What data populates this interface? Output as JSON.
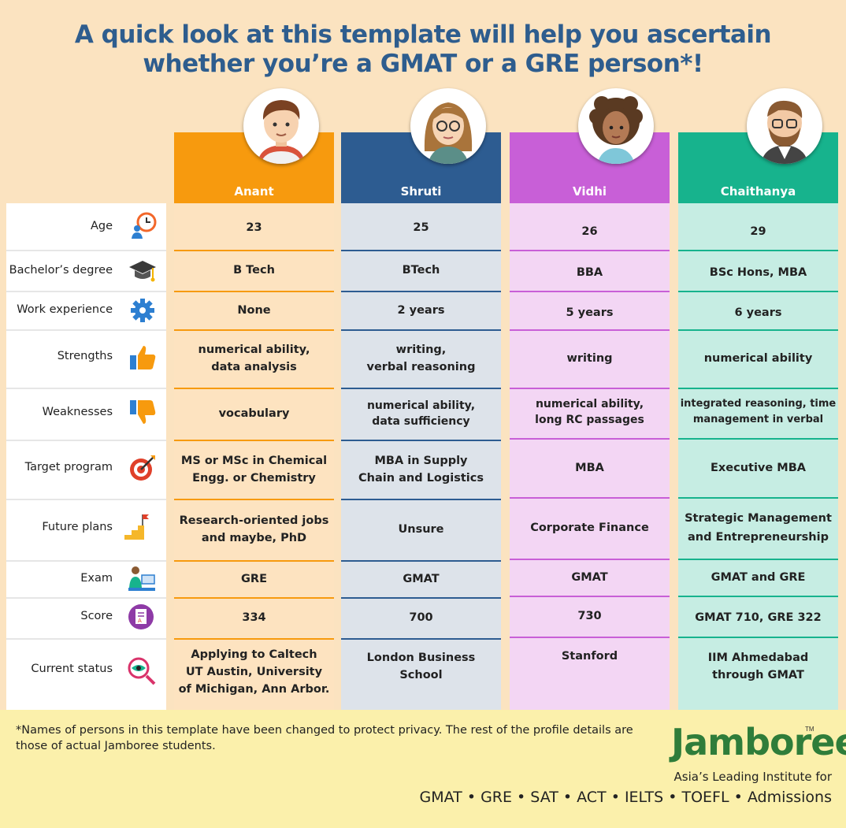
{
  "title": {
    "line1": "A quick look at this template will help you ascertain",
    "line2": "whether you’re a GMAT or a GRE person*!"
  },
  "colors": {
    "anant": "#f79a0e",
    "shruti": "#2d5c91",
    "vidhi": "#c85fd7",
    "chaithanya": "#17b38d",
    "anant_bg": "#fde3c0",
    "shruti_bg": "#dde3ea",
    "vidhi_bg": "#f3d6f4",
    "chaithanya_bg": "#c6ede3"
  },
  "people": [
    {
      "name": "Anant",
      "avatar": "young-man-avatar-icon"
    },
    {
      "name": "Shruti",
      "avatar": "woman-with-glasses-avatar-icon"
    },
    {
      "name": "Vidhi",
      "avatar": "curly-haired-woman-avatar-icon"
    },
    {
      "name": "Chaithanya",
      "avatar": "bearded-man-avatar-icon"
    }
  ],
  "rows": [
    {
      "label": "Age",
      "icon": "age-clock-person-icon",
      "values": [
        "23",
        "25",
        "26",
        "29"
      ]
    },
    {
      "label": "Bachelor’s degree",
      "icon": "graduation-cap-icon",
      "values": [
        "B Tech",
        "BTech",
        "BBA",
        "BSc Hons, MBA"
      ]
    },
    {
      "label": "Work experience",
      "icon": "gear-icon",
      "values": [
        "None",
        "2 years",
        "5 years",
        "6 years"
      ]
    },
    {
      "label": "Strengths",
      "icon": "thumbs-up-icon",
      "values": [
        "numerical ability,\ndata analysis",
        "writing,\nverbal reasoning",
        "writing",
        "numerical ability"
      ]
    },
    {
      "label": "Weaknesses",
      "icon": "thumbs-down-icon",
      "values": [
        "vocabulary",
        "numerical ability,\ndata sufficiency",
        "numerical ability,\nlong RC passages",
        "integrated reasoning, time\nmanagement in verbal"
      ]
    },
    {
      "label": "Target program",
      "icon": "target-icon",
      "values": [
        "MS or MSc in Chemical\nEngg. or Chemistry",
        "MBA in Supply\nChain and Logistics",
        "MBA",
        "Executive MBA"
      ]
    },
    {
      "label": "Future plans",
      "icon": "stairs-flag-icon",
      "values": [
        "Research-oriented jobs\nand maybe, PhD",
        "Unsure",
        "Corporate Finance",
        "Strategic Management\nand Entrepreneurship"
      ]
    },
    {
      "label": "Exam",
      "icon": "student-at-computer-icon",
      "values": [
        "GRE",
        "GMAT",
        "GMAT",
        "GMAT and GRE"
      ]
    },
    {
      "label": "Score",
      "icon": "score-sheet-icon",
      "values": [
        "334",
        "700",
        "730",
        "GMAT 710, GRE 322"
      ]
    },
    {
      "label": "Current status",
      "icon": "magnifier-eye-icon",
      "values": [
        "Applying to Caltech\nUT Austin, University\nof Michigan, Ann Arbor.",
        "London Business\nSchool",
        "Stanford",
        "IIM Ahmedabad\nthrough GMAT"
      ]
    }
  ],
  "footer": {
    "disclaimer": "*Names of persons in this template have been changed to protect privacy. The rest of the profile details are those of actual Jamboree students.",
    "logo": "Jamboree",
    "tm": "TM",
    "tagline": "Asia’s Leading Institute for",
    "services": "GMAT • GRE • SAT • ACT • IELTS • TOEFL • Admissions"
  }
}
